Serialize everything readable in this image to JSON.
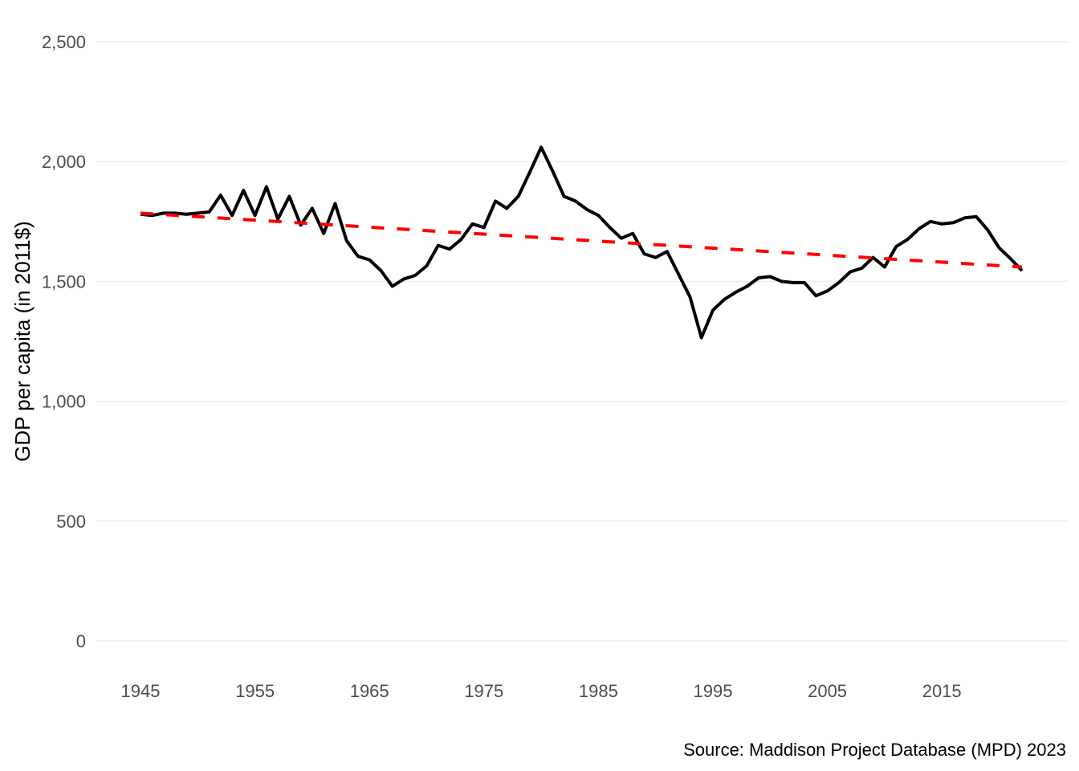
{
  "chart_data": {
    "type": "line",
    "title": "",
    "xlabel": "",
    "ylabel": "GDP per capita (in 2011$)",
    "caption": "Source: Maddison Project Database (MPD) 2023",
    "xlim": [
      1945,
      2022
    ],
    "ylim": [
      0,
      2500
    ],
    "x_ticks": [
      1945,
      1955,
      1965,
      1975,
      1985,
      1995,
      2005,
      2015
    ],
    "x_tick_labels": [
      "1945",
      "1955",
      "1965",
      "1975",
      "1985",
      "1995",
      "2005",
      "2015"
    ],
    "y_ticks": [
      0,
      500,
      1000,
      1500,
      2000,
      2500
    ],
    "y_tick_labels": [
      "0",
      "500",
      "1,000",
      "1,500",
      "2,000",
      "2,500"
    ],
    "grid": "horizontal major",
    "legend": "none",
    "series": [
      {
        "style": "solid",
        "color": "#000000",
        "x": [
          1945,
          1946,
          1947,
          1948,
          1949,
          1950,
          1951,
          1952,
          1953,
          1954,
          1955,
          1956,
          1957,
          1958,
          1959,
          1960,
          1961,
          1962,
          1963,
          1964,
          1965,
          1966,
          1967,
          1968,
          1969,
          1970,
          1971,
          1972,
          1973,
          1974,
          1975,
          1976,
          1977,
          1978,
          1979,
          1980,
          1981,
          1982,
          1983,
          1984,
          1985,
          1986,
          1987,
          1988,
          1989,
          1990,
          1991,
          1992,
          1993,
          1994,
          1995,
          1996,
          1997,
          1998,
          1999,
          2000,
          2001,
          2002,
          2003,
          2004,
          2005,
          2006,
          2007,
          2008,
          2009,
          2010,
          2011,
          2012,
          2013,
          2014,
          2015,
          2016,
          2017,
          2018,
          2019,
          2020,
          2021,
          2022
        ],
        "y": [
          1780,
          1775,
          1785,
          1785,
          1780,
          1785,
          1790,
          1860,
          1775,
          1880,
          1775,
          1895,
          1760,
          1855,
          1735,
          1805,
          1700,
          1825,
          1670,
          1605,
          1590,
          1545,
          1480,
          1510,
          1525,
          1565,
          1650,
          1635,
          1675,
          1740,
          1725,
          1835,
          1805,
          1855,
          1955,
          2060,
          1960,
          1855,
          1835,
          1800,
          1775,
          1725,
          1680,
          1700,
          1615,
          1600,
          1625,
          1530,
          1435,
          1265,
          1380,
          1425,
          1455,
          1480,
          1515,
          1520,
          1500,
          1495,
          1495,
          1440,
          1460,
          1495,
          1540,
          1555,
          1600,
          1560,
          1645,
          1675,
          1720,
          1750,
          1740,
          1745,
          1765,
          1770,
          1715,
          1640,
          1595,
          1545
        ]
      },
      {
        "style": "dashed",
        "color": "#ff0000",
        "x": [
          1945,
          2022
        ],
        "y": [
          1785,
          1560
        ]
      }
    ]
  }
}
